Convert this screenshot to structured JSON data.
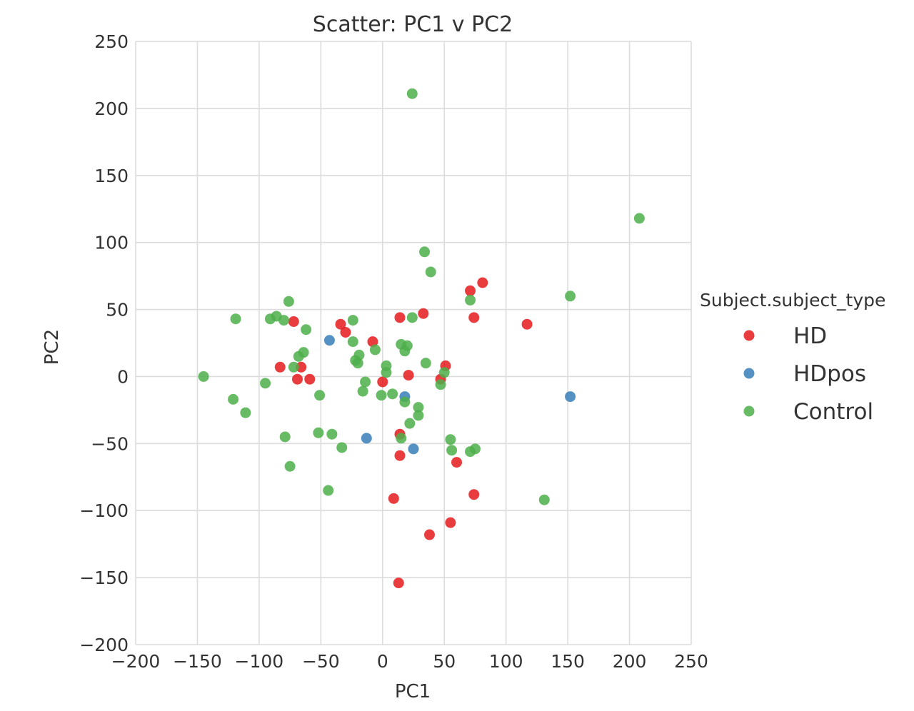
{
  "chart_data": {
    "type": "scatter",
    "title": "Scatter: PC1 v PC2",
    "xlabel": "PC1",
    "ylabel": "PC2",
    "xlim": [
      -200,
      250
    ],
    "ylim": [
      -200,
      250
    ],
    "grid": true,
    "x_ticks": [
      -200,
      -150,
      -100,
      -50,
      0,
      50,
      100,
      150,
      200,
      250
    ],
    "y_ticks": [
      -200,
      -150,
      -100,
      -50,
      0,
      50,
      100,
      150,
      200,
      250
    ],
    "x_tick_labels": [
      "−200",
      "−150",
      "−100",
      "−50",
      "0",
      "50",
      "100",
      "150",
      "200",
      "250"
    ],
    "y_tick_labels": [
      "−200",
      "−150",
      "−100",
      "−50",
      "0",
      "50",
      "100",
      "150",
      "200",
      "250"
    ],
    "legend": {
      "title": "Subject.subject_type",
      "placement": "right"
    },
    "series": [
      {
        "name": "HD",
        "color": "#e41a1c",
        "points": [
          [
            -72,
            41
          ],
          [
            -83,
            7
          ],
          [
            -66,
            7
          ],
          [
            -69,
            -2
          ],
          [
            -59,
            -2
          ],
          [
            -34,
            39
          ],
          [
            -30,
            33
          ],
          [
            -8,
            26
          ],
          [
            0,
            -4
          ],
          [
            14,
            44
          ],
          [
            21,
            1
          ],
          [
            33,
            47
          ],
          [
            51,
            8
          ],
          [
            47,
            -2
          ],
          [
            71,
            64
          ],
          [
            81,
            70
          ],
          [
            74,
            44
          ],
          [
            117,
            39
          ],
          [
            14,
            -43
          ],
          [
            14,
            -59
          ],
          [
            60,
            -64
          ],
          [
            9,
            -91
          ],
          [
            74,
            -88
          ],
          [
            38,
            -118
          ],
          [
            55,
            -109
          ],
          [
            13,
            -154
          ]
        ]
      },
      {
        "name": "HDpos",
        "color": "#377eb8",
        "points": [
          [
            -43,
            27
          ],
          [
            -13,
            -46
          ],
          [
            18,
            -15
          ],
          [
            25,
            -54
          ],
          [
            152,
            -15
          ]
        ]
      },
      {
        "name": "Control",
        "color": "#4daf4a",
        "points": [
          [
            24,
            211
          ],
          [
            208,
            118
          ],
          [
            34,
            93
          ],
          [
            39,
            78
          ],
          [
            152,
            60
          ],
          [
            71,
            57
          ],
          [
            -76,
            56
          ],
          [
            -119,
            43
          ],
          [
            -91,
            43
          ],
          [
            -86,
            45
          ],
          [
            -80,
            42
          ],
          [
            -62,
            35
          ],
          [
            -24,
            42
          ],
          [
            24,
            44
          ],
          [
            -24,
            26
          ],
          [
            15,
            24
          ],
          [
            18,
            19
          ],
          [
            20,
            23
          ],
          [
            -19,
            16
          ],
          [
            -22,
            12
          ],
          [
            -20,
            10
          ],
          [
            -6,
            20
          ],
          [
            -68,
            15
          ],
          [
            -64,
            18
          ],
          [
            -72,
            7
          ],
          [
            35,
            10
          ],
          [
            50,
            3
          ],
          [
            3,
            8
          ],
          [
            3,
            3
          ],
          [
            -14,
            -4
          ],
          [
            -16,
            -11
          ],
          [
            -1,
            -14
          ],
          [
            8,
            -13
          ],
          [
            -145,
            0
          ],
          [
            -95,
            -5
          ],
          [
            -121,
            -17
          ],
          [
            -111,
            -27
          ],
          [
            -51,
            -14
          ],
          [
            18,
            -19
          ],
          [
            29,
            -23
          ],
          [
            29,
            -29
          ],
          [
            22,
            -35
          ],
          [
            47,
            -6
          ],
          [
            -79,
            -45
          ],
          [
            -52,
            -42
          ],
          [
            -41,
            -43
          ],
          [
            -33,
            -53
          ],
          [
            15,
            -46
          ],
          [
            55,
            -47
          ],
          [
            56,
            -55
          ],
          [
            71,
            -56
          ],
          [
            75,
            -54
          ],
          [
            -75,
            -67
          ],
          [
            -44,
            -85
          ],
          [
            131,
            -92
          ]
        ]
      }
    ]
  }
}
